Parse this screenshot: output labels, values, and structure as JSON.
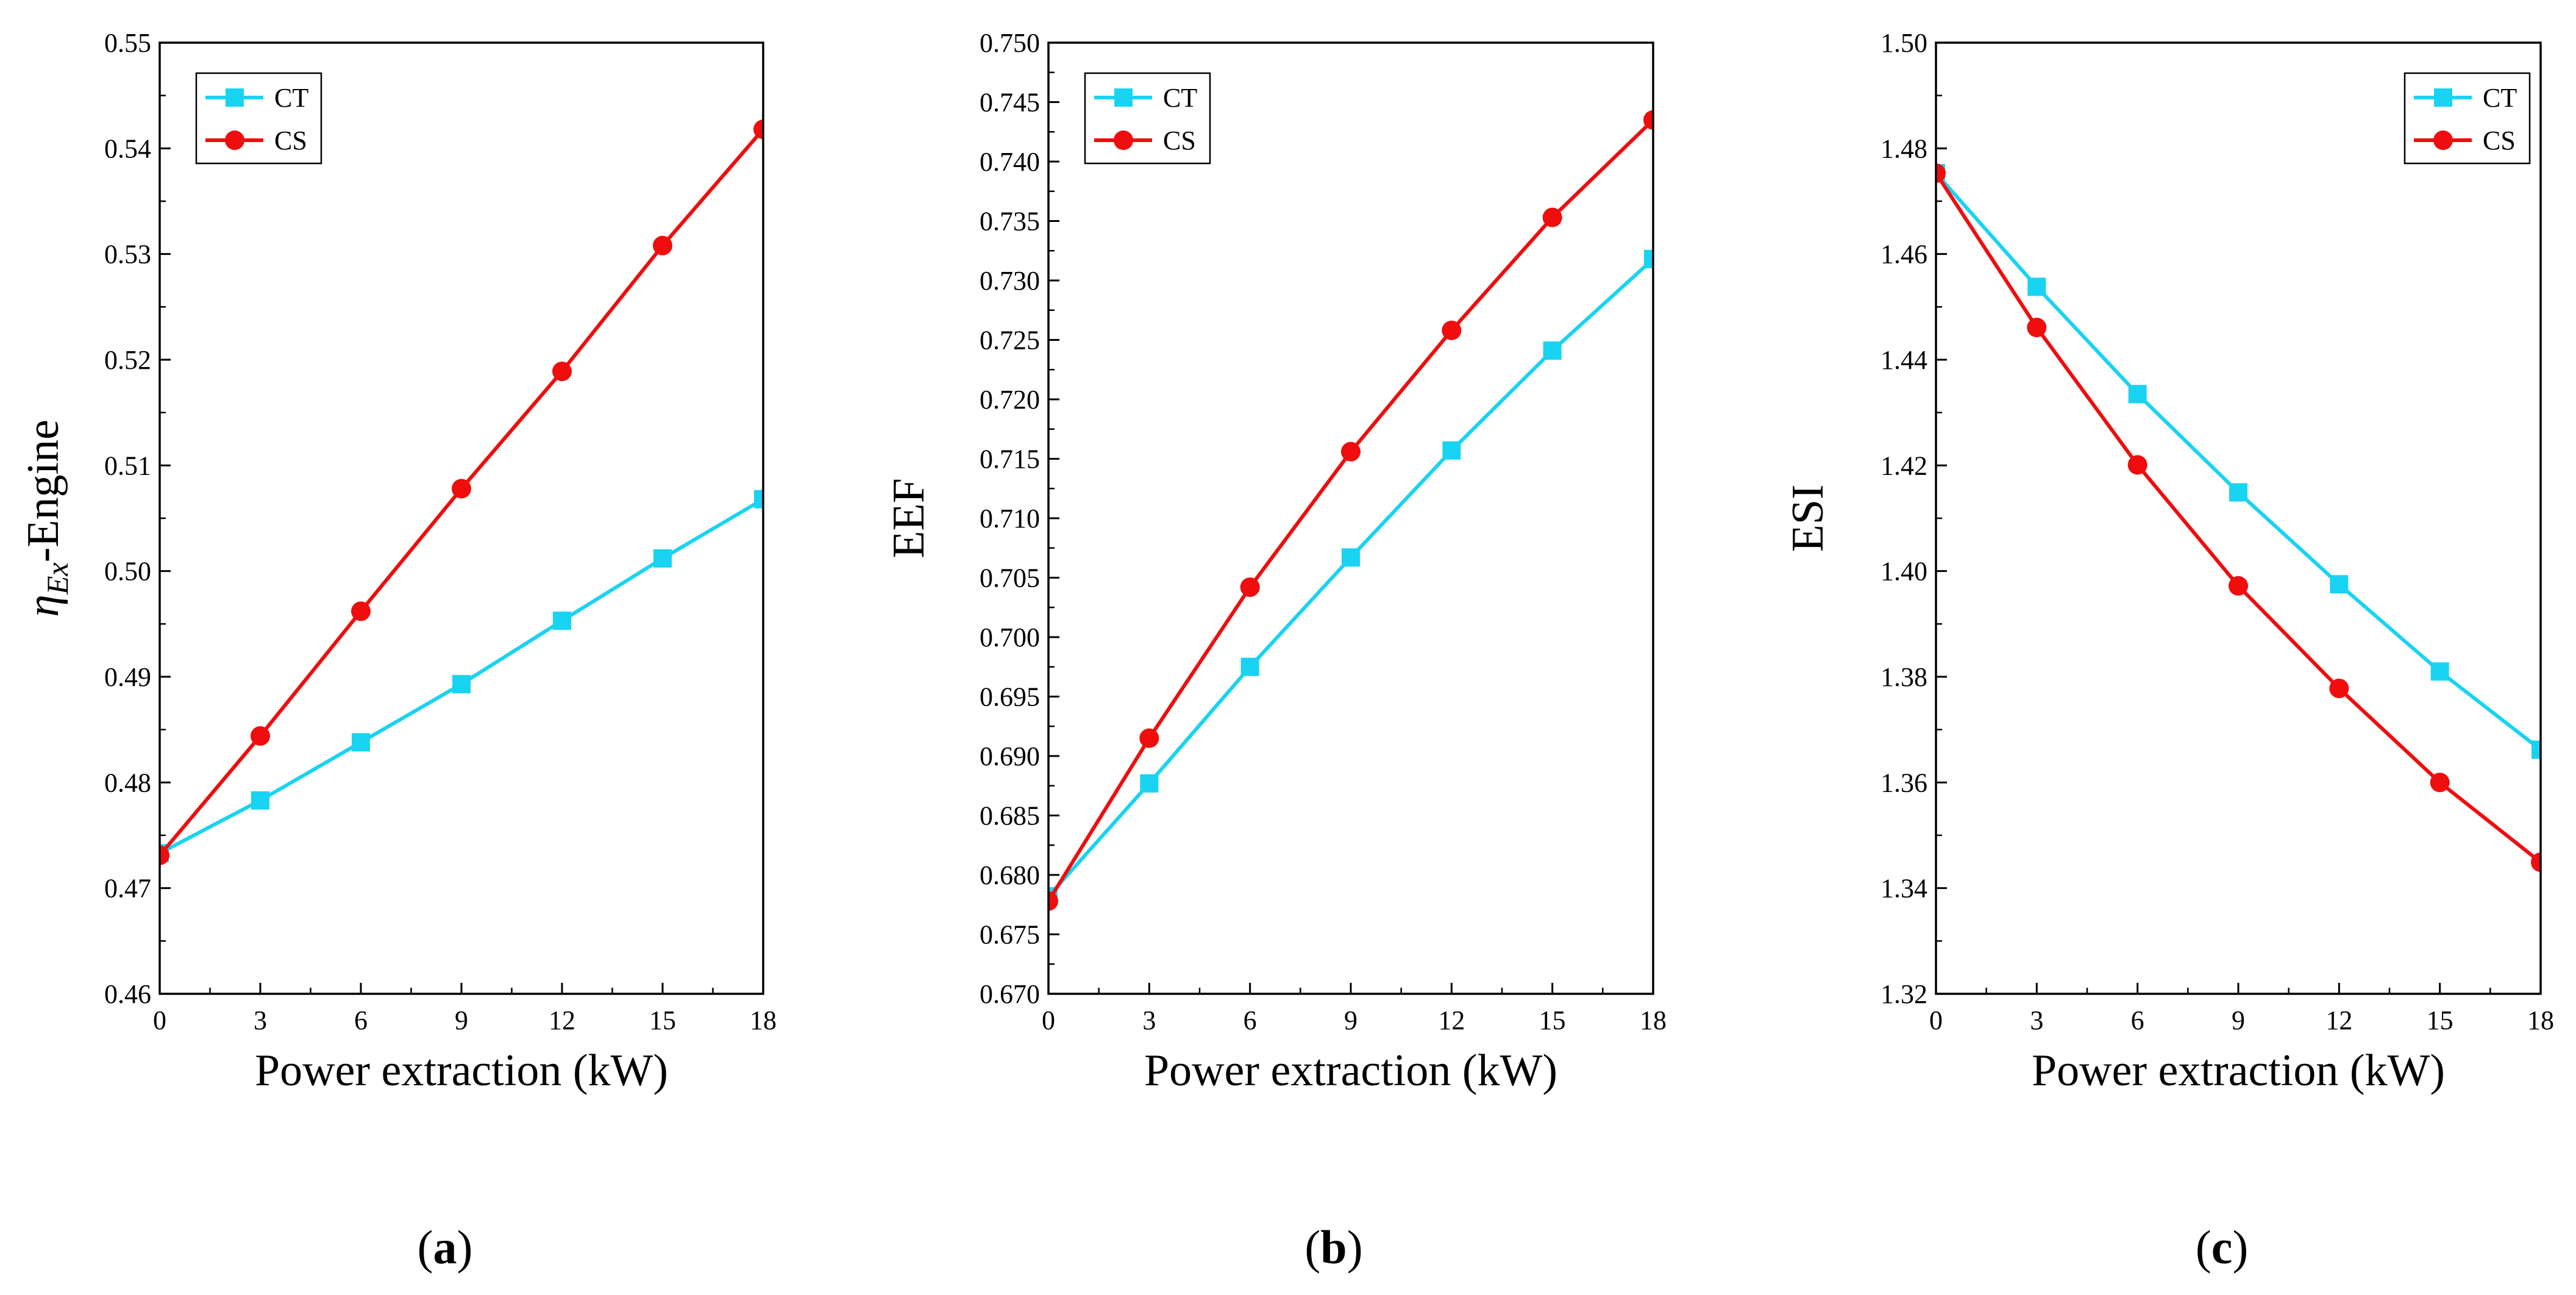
{
  "colors": {
    "CT": "#19d3f3",
    "CS": "#ef0d0d",
    "axis": "#000000"
  },
  "chart_data": [
    {
      "type": "line",
      "panel_label": "a",
      "xlabel": "Power extraction (kW)",
      "ylabel": "-Engine",
      "ylabel_symbol": "η",
      "ylabel_sub": "Ex",
      "x": [
        0,
        3,
        6,
        9,
        12,
        15,
        18
      ],
      "xticks": [
        "0",
        "3",
        "6",
        "9",
        "12",
        "15",
        "18"
      ],
      "xlim": [
        0,
        18
      ],
      "ylim": [
        0.46,
        0.55
      ],
      "yticks": [
        "0.46",
        "0.47",
        "0.48",
        "0.49",
        "0.50",
        "0.51",
        "0.52",
        "0.53",
        "0.54",
        "0.55"
      ],
      "legend_position": "top-left",
      "grid": false,
      "series": [
        {
          "name": "CT",
          "marker": "square",
          "values": [
            0.4733,
            0.4783,
            0.4838,
            0.4893,
            0.4953,
            0.5012,
            0.5068
          ]
        },
        {
          "name": "CS",
          "marker": "circle",
          "values": [
            0.4731,
            0.4844,
            0.4962,
            0.5078,
            0.5189,
            0.5308,
            0.5418
          ]
        }
      ]
    },
    {
      "type": "line",
      "panel_label": "b",
      "xlabel": "Power extraction (kW)",
      "ylabel": "EEF",
      "x": [
        0,
        3,
        6,
        9,
        12,
        15,
        18
      ],
      "xticks": [
        "0",
        "3",
        "6",
        "9",
        "12",
        "15",
        "18"
      ],
      "xlim": [
        0,
        18
      ],
      "ylim": [
        0.67,
        0.75
      ],
      "yticks": [
        "0.670",
        "0.675",
        "0.680",
        "0.685",
        "0.690",
        "0.695",
        "0.700",
        "0.705",
        "0.710",
        "0.715",
        "0.720",
        "0.725",
        "0.730",
        "0.735",
        "0.740",
        "0.745",
        "0.750"
      ],
      "legend_position": "top-left",
      "grid": false,
      "series": [
        {
          "name": "CT",
          "marker": "square",
          "values": [
            0.6782,
            0.6877,
            0.6975,
            0.7067,
            0.7157,
            0.7241,
            0.7318
          ]
        },
        {
          "name": "CS",
          "marker": "circle",
          "values": [
            0.6778,
            0.6915,
            0.7042,
            0.7156,
            0.7258,
            0.7353,
            0.7435
          ]
        }
      ]
    },
    {
      "type": "line",
      "panel_label": "c",
      "xlabel": "Power extraction (kW)",
      "ylabel": "ESI",
      "x": [
        0,
        3,
        6,
        9,
        12,
        15,
        18
      ],
      "xticks": [
        "0",
        "3",
        "6",
        "9",
        "12",
        "15",
        "18"
      ],
      "xlim": [
        0,
        18
      ],
      "ylim": [
        1.32,
        1.5
      ],
      "yticks": [
        "1.32",
        "1.34",
        "1.36",
        "1.38",
        "1.40",
        "1.42",
        "1.44",
        "1.46",
        "1.48",
        "1.50"
      ],
      "legend_position": "top-right",
      "grid": false,
      "series": [
        {
          "name": "CT",
          "marker": "square",
          "values": [
            1.4753,
            1.4538,
            1.4335,
            1.4149,
            1.3975,
            1.381,
            1.3662
          ]
        },
        {
          "name": "CS",
          "marker": "circle",
          "values": [
            1.4753,
            1.4461,
            1.4201,
            1.3972,
            1.3778,
            1.36,
            1.3449
          ]
        }
      ]
    }
  ]
}
